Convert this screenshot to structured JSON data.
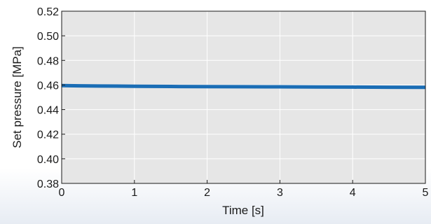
{
  "chart_data": {
    "type": "line",
    "title": "",
    "xlabel": "Time [s]",
    "ylabel": "Set pressure [MPa]",
    "xlim": [
      0,
      5
    ],
    "ylim": [
      0.38,
      0.52
    ],
    "x_ticks": [
      0,
      1,
      2,
      3,
      4,
      5
    ],
    "y_ticks": [
      0.38,
      0.4,
      0.42,
      0.44,
      0.46,
      0.48,
      0.5,
      0.52
    ],
    "x_tick_labels": [
      "0",
      "1",
      "2",
      "3",
      "4",
      "5"
    ],
    "y_tick_labels": [
      "0.38",
      "0.40",
      "0.42",
      "0.44",
      "0.46",
      "0.48",
      "0.50",
      "0.52"
    ],
    "grid": true,
    "legend": "none",
    "colors": {
      "plot_background": "#e6e6e6",
      "grid": "#ffffff",
      "axis": "#1a1a1a",
      "series": "#1a6db5"
    },
    "series": [
      {
        "x": [
          0,
          0.25,
          0.5,
          0.75,
          1,
          1.5,
          2,
          2.5,
          3,
          3.5,
          4,
          4.5,
          5
        ],
        "values": [
          0.4595,
          0.4593,
          0.4592,
          0.4591,
          0.459,
          0.4588,
          0.4587,
          0.4586,
          0.4585,
          0.4584,
          0.4583,
          0.4582,
          0.4581
        ]
      }
    ]
  }
}
